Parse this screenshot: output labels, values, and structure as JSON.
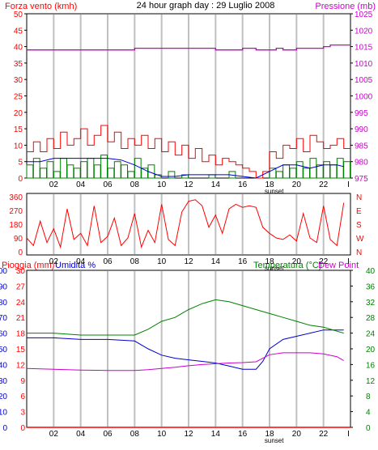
{
  "header": {
    "wind_label": "Forza vento (kmh)",
    "title": "24 hour graph day : 29 Luglio 2008",
    "pressure_label": "Pressione (mb)"
  },
  "colors": {
    "wind": "#ff0000",
    "gust_mark": "#cc0000",
    "wind_fill": "#008000",
    "wind_avg": "#0000cc",
    "pressure": "#cc00cc",
    "direction": "#ff0000",
    "temperature": "#008000",
    "humidity": "#0000cc",
    "dewpoint": "#cc00cc",
    "rain": "#ff0000",
    "grid": "#c0c0c0",
    "frame": "#000000"
  },
  "x_axis": {
    "hours": [
      "02",
      "04",
      "06",
      "08",
      "10",
      "12",
      "14",
      "16",
      "18",
      "20",
      "22"
    ],
    "sunset_label": "sunset",
    "end_mark": "I"
  },
  "panel1": {
    "wind_ticks": [
      "0",
      "5",
      "10",
      "15",
      "20",
      "25",
      "30",
      "35",
      "40",
      "45",
      "50"
    ],
    "pressure_ticks": [
      "975",
      "980",
      "985",
      "990",
      "995",
      "1000",
      "1005",
      "1010",
      "1015",
      "1020",
      "1025"
    ]
  },
  "panel2": {
    "deg_ticks": [
      "0",
      "90",
      "180",
      "270",
      "360"
    ],
    "compass": [
      "N",
      "E",
      "S",
      "W",
      "N"
    ]
  },
  "panel3": {
    "rain_label": "Pioggia (mm)",
    "humidity_label": "Umidita %",
    "temperature_label": "Temperatura (°C)",
    "dewpoint_label": "Dew Point",
    "rain_ticks": [
      "0",
      "3",
      "6",
      "9",
      "12",
      "15",
      "18",
      "21",
      "24",
      "27",
      "30"
    ],
    "humidity_ticks": [
      "0",
      "10",
      "20",
      "30",
      "40",
      "50",
      "60",
      "70",
      "80",
      "90",
      "100"
    ],
    "temp_ticks": [
      "0",
      "4",
      "8",
      "12",
      "16",
      "20",
      "24",
      "28",
      "32",
      "36",
      "40"
    ]
  },
  "chart_data": [
    {
      "type": "line",
      "x_unit": "hour of day",
      "ylim": [
        0,
        50
      ],
      "y2lim": [
        975,
        1025
      ],
      "series": [
        {
          "axis": "left",
          "x": [
            0,
            0.5,
            1,
            1.5,
            2,
            2.5,
            3,
            3.5,
            4,
            4.5,
            5,
            5.5,
            6,
            6.5,
            7,
            7.5,
            8,
            8.5,
            9,
            9.5,
            10,
            10.5,
            11,
            11.5,
            12,
            12.5,
            13,
            13.5,
            14,
            14.5,
            15,
            15.5,
            16,
            16.5,
            17,
            17.5,
            18,
            18.5,
            19,
            19.5,
            20,
            20.5,
            21,
            21.5,
            22,
            22.5,
            23,
            23.5
          ],
          "values": [
            8,
            11,
            8,
            12,
            9,
            14,
            10,
            12,
            15,
            10,
            13,
            16,
            11,
            14,
            9,
            12,
            10,
            13,
            9,
            12,
            8,
            11,
            7,
            10,
            6,
            9,
            5,
            7,
            4,
            6,
            5,
            4,
            3,
            2,
            0,
            2,
            8,
            6,
            10,
            9,
            12,
            8,
            13,
            11,
            9,
            10,
            12,
            9
          ]
        },
        {
          "axis": "left",
          "x": [
            0,
            0.5,
            1,
            1.5,
            2,
            2.5,
            3,
            3.5,
            4,
            4.5,
            5,
            5.5,
            6,
            6.5,
            7,
            7.5,
            8,
            8.5,
            9,
            9.5,
            10,
            10.5,
            11,
            11.5,
            12,
            12.5,
            13,
            13.5,
            14,
            14.5,
            15,
            15.5,
            16,
            16.5,
            17,
            17.5,
            18,
            18.5,
            19,
            19.5,
            20,
            20.5,
            21,
            21.5,
            22,
            22.5,
            23,
            23.5
          ],
          "values": [
            4,
            6,
            3,
            5,
            2,
            6,
            4,
            3,
            5,
            6,
            4,
            7,
            3,
            5,
            4,
            2,
            6,
            3,
            4,
            1,
            0,
            2,
            0,
            1,
            0,
            0,
            0,
            1,
            0,
            0,
            2,
            0,
            0,
            0,
            0,
            0,
            3,
            2,
            4,
            3,
            5,
            3,
            6,
            4,
            5,
            4,
            6,
            5
          ]
        },
        {
          "axis": "left",
          "x": [
            0,
            1,
            2,
            3,
            4,
            5,
            6,
            7,
            8,
            9,
            10,
            11,
            12,
            13,
            14,
            15,
            16,
            17,
            18,
            19,
            20,
            21,
            22,
            23,
            23.5
          ],
          "values": [
            5,
            5,
            6,
            6,
            6,
            6,
            6,
            5.5,
            4,
            2,
            0.5,
            0.5,
            1,
            1,
            1,
            1,
            0.5,
            0,
            2,
            4,
            4,
            3,
            4,
            4,
            3.5
          ]
        },
        {
          "axis": "right",
          "x": [
            0,
            2,
            4,
            6,
            7.9,
            8,
            10,
            12,
            13.5,
            14,
            15.9,
            16,
            17,
            18,
            18.5,
            19,
            20,
            21,
            22,
            22.5,
            23,
            23.5
          ],
          "values": [
            1014,
            1014,
            1014,
            1014,
            1014,
            1014.5,
            1014.5,
            1014.5,
            1014.5,
            1014,
            1014,
            1014.5,
            1014,
            1014,
            1014.5,
            1014,
            1014.5,
            1014.5,
            1015,
            1015.5,
            1015.5,
            1015.5
          ]
        }
      ]
    },
    {
      "type": "line",
      "x_unit": "hour of day",
      "ylim": [
        0,
        360
      ],
      "series": [
        {
          "x": [
            0,
            0.5,
            1,
            1.5,
            2,
            2.5,
            3,
            3.5,
            4,
            4.5,
            5,
            5.5,
            6,
            6.5,
            7,
            7.5,
            8,
            8.5,
            9,
            9.5,
            10,
            10.5,
            11,
            11.5,
            12,
            12.5,
            13,
            13.5,
            14,
            14.5,
            15,
            15.5,
            16,
            16.5,
            17,
            17.5,
            18,
            18.5,
            19,
            19.5,
            20,
            20.5,
            21,
            21.5,
            22,
            22.5,
            23,
            23.5
          ],
          "values": [
            90,
            40,
            200,
            60,
            150,
            30,
            280,
            80,
            120,
            40,
            300,
            60,
            100,
            220,
            40,
            90,
            250,
            30,
            140,
            60,
            310,
            80,
            40,
            260,
            330,
            340,
            300,
            160,
            240,
            120,
            280,
            310,
            290,
            300,
            290,
            160,
            120,
            90,
            80,
            110,
            70,
            250,
            90,
            60,
            300,
            80,
            40,
            320
          ]
        }
      ]
    },
    {
      "type": "line",
      "x_unit": "hour of day",
      "ylim": [
        0,
        30
      ],
      "series": [
        {
          "axis": "rain",
          "x": [
            0,
            24
          ],
          "values": [
            0,
            0
          ]
        },
        {
          "axis": "humidity",
          "x": [
            0,
            2,
            4,
            6,
            8,
            9,
            10,
            11,
            12,
            13,
            14,
            15,
            16,
            17,
            17.5,
            18,
            19,
            20,
            21,
            22,
            23,
            23.5
          ],
          "values": [
            57,
            57,
            56,
            56,
            55,
            50,
            46,
            44,
            43,
            42,
            41,
            39,
            37,
            37,
            42,
            50,
            56,
            58,
            60,
            62,
            62,
            62
          ]
        },
        {
          "axis": "temperature",
          "x": [
            0,
            2,
            4,
            6,
            8,
            9,
            10,
            11,
            12,
            13,
            14,
            15,
            16,
            17,
            18,
            19,
            20,
            21,
            22,
            23,
            23.5
          ],
          "values": [
            24,
            24,
            23.5,
            23.5,
            23.5,
            25,
            27,
            28,
            30,
            31.5,
            32.5,
            32,
            31,
            30,
            29,
            28,
            27,
            26,
            25.5,
            24.5,
            24
          ]
        },
        {
          "axis": "temperature",
          "x": [
            0,
            2,
            4,
            6,
            8,
            9,
            10,
            11,
            12,
            13,
            14,
            15,
            16,
            17,
            18,
            19,
            20,
            21,
            22,
            23,
            23.5
          ],
          "values": [
            15,
            14.8,
            14.6,
            14.5,
            14.5,
            14.7,
            15,
            15.3,
            15.7,
            16,
            16.2,
            16.4,
            16.5,
            16.7,
            18.5,
            19,
            19,
            19,
            18.7,
            18,
            17
          ]
        }
      ]
    }
  ]
}
